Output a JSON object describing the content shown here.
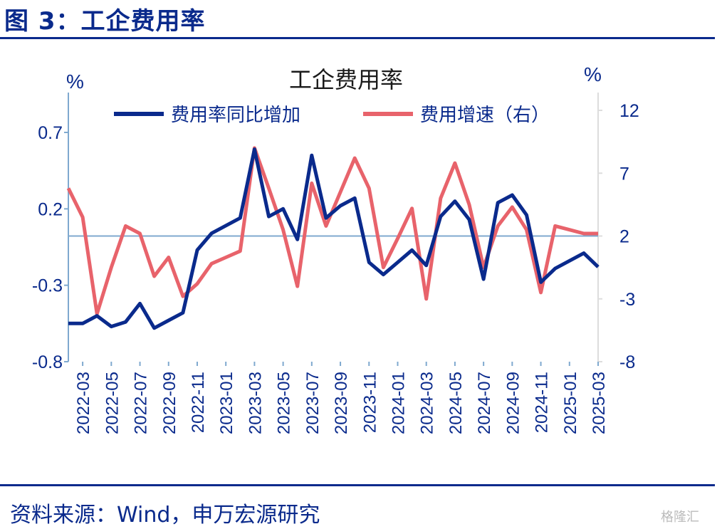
{
  "figure_title": "图 3：工企费用率",
  "source_text": "资料来源：Wind，申万宏源研究",
  "watermark_text": "格隆汇",
  "colors": {
    "series1": "#0a2a8c",
    "series2": "#e8636b",
    "axis": "#7fa9cf",
    "text": "#0a2a8c"
  },
  "chart_data": {
    "type": "line",
    "title": "工企费用率",
    "y_left_unit": "%",
    "y_right_unit": "%",
    "y_left": {
      "ticks": [
        "0.7",
        "0.2",
        "-0.3",
        "-0.8"
      ],
      "values": [
        0.7,
        0.2,
        -0.3,
        -0.8
      ],
      "range": [
        -0.8,
        0.95
      ]
    },
    "y_right": {
      "ticks": [
        "12",
        "7",
        "2",
        "-3",
        "-8"
      ],
      "values": [
        12,
        7,
        2,
        -3,
        -8
      ],
      "range": [
        -8,
        14
      ]
    },
    "x_tick_labels": [
      "2022-03",
      "2022-05",
      "2022-07",
      "2022-09",
      "2022-11",
      "2023-01",
      "2023-03",
      "2023-05",
      "2023-07",
      "2023-09",
      "2023-11",
      "2024-01",
      "2024-03",
      "2024-05",
      "2024-07",
      "2024-09",
      "2024-11",
      "2025-01",
      "2025-03"
    ],
    "x_tick_index": [
      1,
      3,
      5,
      7,
      9,
      11,
      13,
      15,
      17,
      19,
      21,
      23,
      25,
      27,
      29,
      31,
      33,
      35,
      37
    ],
    "categories": [
      "2022-02",
      "2022-03",
      "2022-04",
      "2022-05",
      "2022-06",
      "2022-07",
      "2022-08",
      "2022-09",
      "2022-10",
      "2022-11",
      "2022-12",
      "2023-01",
      "2023-02",
      "2023-03",
      "2023-04",
      "2023-05",
      "2023-06",
      "2023-07",
      "2023-08",
      "2023-09",
      "2023-10",
      "2023-11",
      "2023-12",
      "2024-01",
      "2024-02",
      "2024-03",
      "2024-04",
      "2024-05",
      "2024-06",
      "2024-07",
      "2024-08",
      "2024-09",
      "2024-10",
      "2024-11",
      "2024-12",
      "2025-01",
      "2025-02",
      "2025-03"
    ],
    "series": [
      {
        "name": "费用率同比增加",
        "axis": "left",
        "values": [
          -0.55,
          -0.55,
          -0.5,
          -0.57,
          -0.54,
          -0.42,
          -0.58,
          -0.53,
          -0.48,
          -0.07,
          0.04,
          0.09,
          0.14,
          0.59,
          0.15,
          0.2,
          0.0,
          0.55,
          0.14,
          0.22,
          0.27,
          -0.15,
          -0.23,
          -0.15,
          -0.07,
          -0.17,
          0.15,
          0.25,
          0.13,
          -0.26,
          0.24,
          0.29,
          0.16,
          -0.28,
          -0.19,
          -0.14,
          -0.09,
          -0.18
        ]
      },
      {
        "name": "费用增速（右）",
        "axis": "right",
        "values": [
          5.8,
          3.5,
          -4.2,
          -0.5,
          2.8,
          2.2,
          -1.2,
          0.3,
          -2.8,
          -1.8,
          -0.2,
          0.3,
          0.8,
          9.0,
          5.8,
          2.5,
          -2.0,
          6.2,
          2.8,
          5.5,
          8.2,
          5.8,
          -0.5,
          1.8,
          4.2,
          -3.0,
          5.0,
          7.8,
          4.5,
          -0.5,
          2.8,
          4.3,
          2.5,
          -2.5,
          2.8,
          2.5,
          2.2,
          2.2
        ]
      }
    ],
    "legend": "top"
  }
}
